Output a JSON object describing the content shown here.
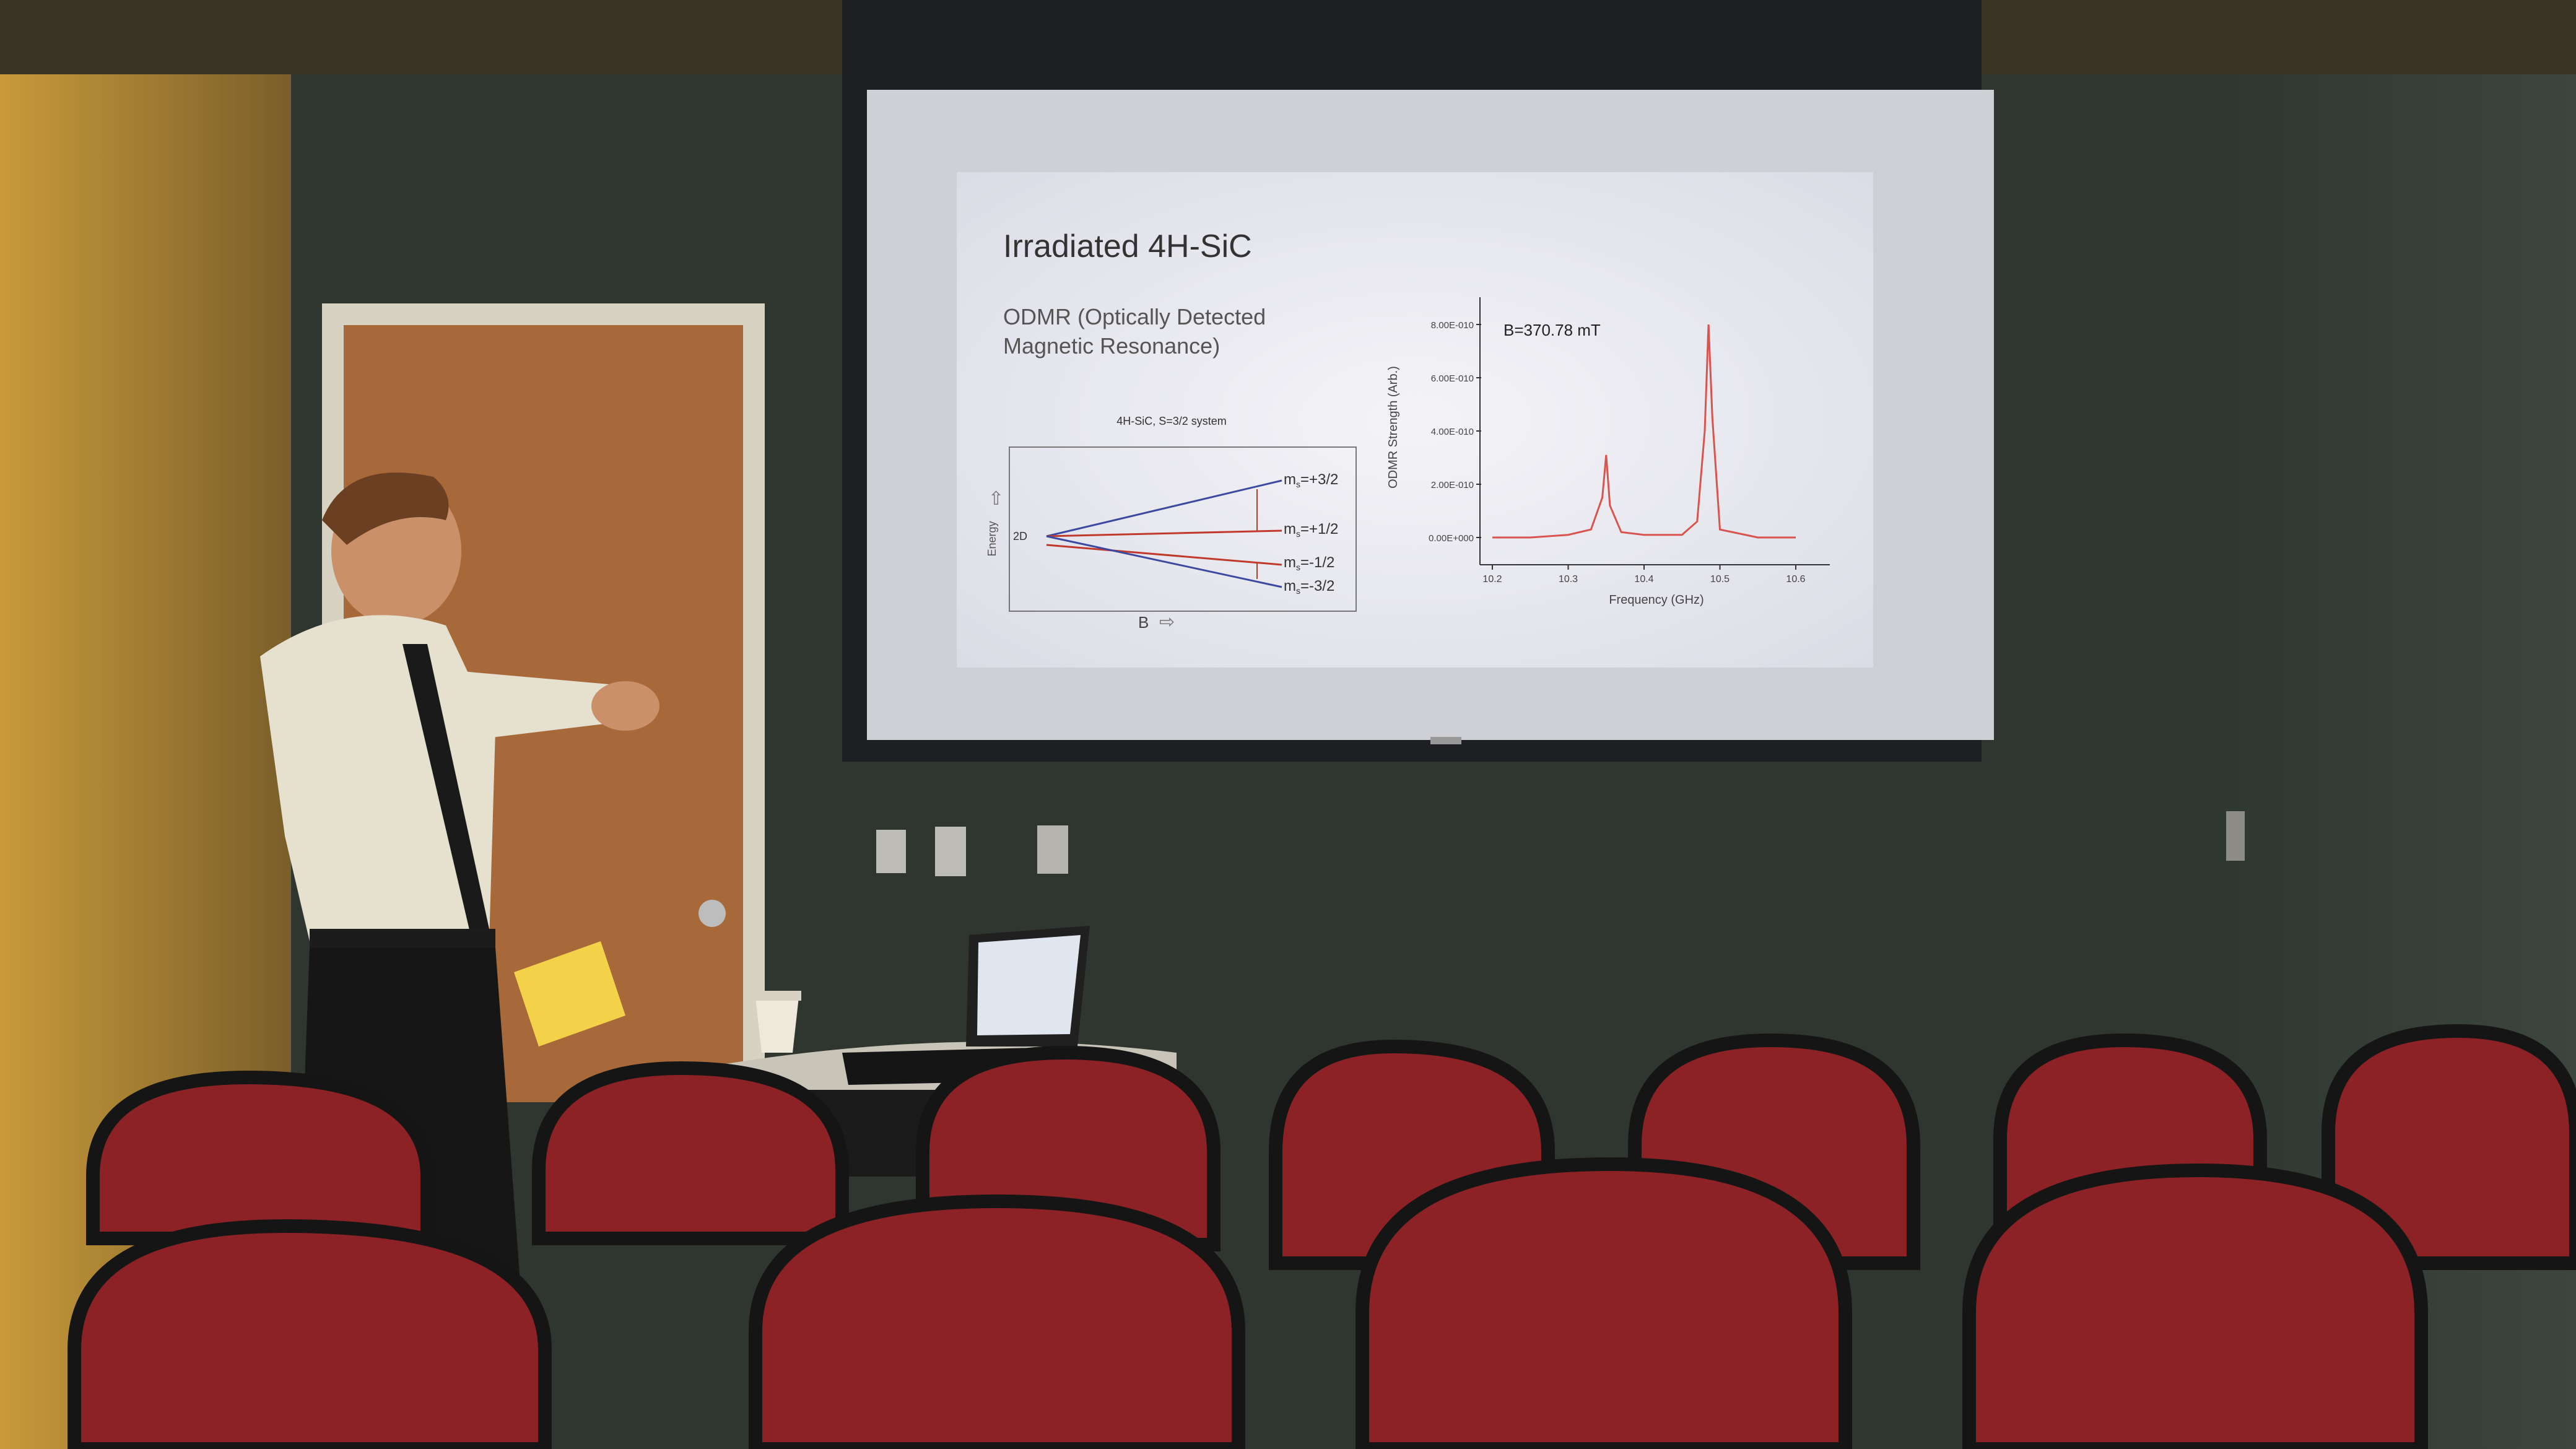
{
  "slide": {
    "title": "Irradiated 4H-SiC",
    "subtitle_line1": "ODMR (Optically Detected",
    "subtitle_line2": "Magnetic Resonance)"
  },
  "energy_diagram": {
    "title": "4H-SiC, S=3/2 system",
    "y_label": "Energy",
    "x_label": "B",
    "level_2d": "2D",
    "levels": [
      "+3/2",
      "+1/2",
      "-1/2",
      "-3/2"
    ],
    "colors": {
      "blue": "#3b4aa0",
      "red": "#c0392b"
    }
  },
  "chart_data": {
    "type": "line",
    "annotation": "B=370.78 mT",
    "xlabel": "Frequency (GHz)",
    "ylabel": "ODMR Strength (Arb.)",
    "x_ticks": [
      "10.2",
      "10.3",
      "10.4",
      "10.5",
      "10.6"
    ],
    "y_ticks": [
      "0.00E+000",
      "2.00E-010",
      "4.00E-010",
      "6.00E-010",
      "8.00E-010"
    ],
    "xlim": [
      10.2,
      10.6
    ],
    "ylim": [
      -1e-10,
      8.6e-10
    ],
    "series": [
      {
        "color": "#d9534f",
        "x": [
          10.2,
          10.25,
          10.3,
          10.33,
          10.345,
          10.35,
          10.355,
          10.37,
          10.4,
          10.45,
          10.47,
          10.48,
          10.485,
          10.49,
          10.5,
          10.55,
          10.6
        ],
        "y": [
          0.0,
          0.0,
          1e-11,
          3e-11,
          1.5e-10,
          3.1e-10,
          1.2e-10,
          2e-11,
          1e-11,
          1e-11,
          6e-11,
          4e-10,
          8e-10,
          4.5e-10,
          3e-11,
          0.0,
          0.0
        ]
      }
    ]
  }
}
